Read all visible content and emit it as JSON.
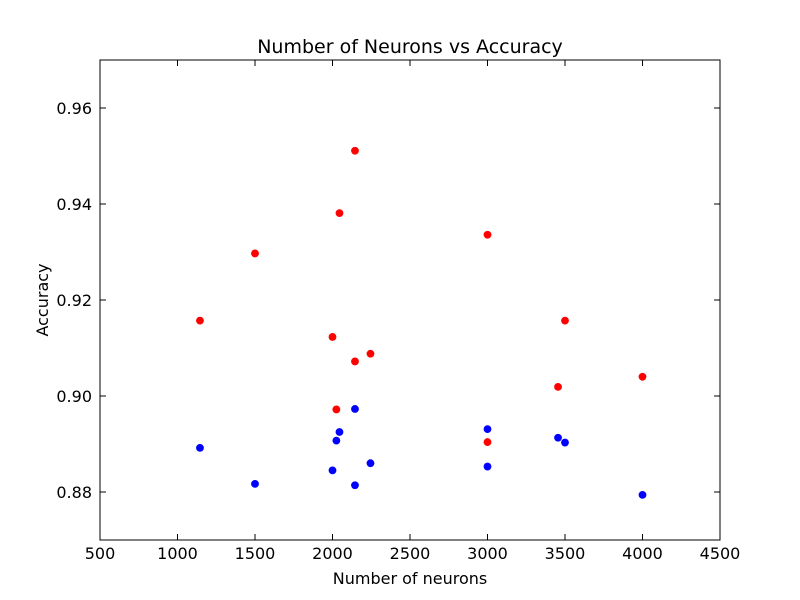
{
  "chart_data": {
    "type": "scatter",
    "title": "Number of Neurons vs Accuracy",
    "xlabel": "Number of neurons",
    "ylabel": "Accuracy",
    "xlim": [
      500,
      4500
    ],
    "ylim": [
      0.87,
      0.97
    ],
    "x_ticks": [
      "500",
      "1000",
      "1500",
      "2000",
      "2500",
      "3000",
      "3500",
      "4000",
      "4500"
    ],
    "x_tick_values": [
      500,
      1000,
      1500,
      2000,
      2500,
      3000,
      3500,
      4000,
      4500
    ],
    "y_ticks": [
      "0.88",
      "0.90",
      "0.92",
      "0.94",
      "0.96"
    ],
    "y_tick_values": [
      0.88,
      0.9,
      0.92,
      0.94,
      0.96
    ],
    "grid": false,
    "series": [
      {
        "color": "#ff0000",
        "points": [
          [
            1145,
            0.9157
          ],
          [
            1500,
            0.9297
          ],
          [
            2000,
            0.9123
          ],
          [
            2025,
            0.8972
          ],
          [
            2045,
            0.9381
          ],
          [
            2145,
            0.9511
          ],
          [
            2145,
            0.9072
          ],
          [
            2245,
            0.9088
          ],
          [
            3000,
            0.9336
          ],
          [
            3000,
            0.8904
          ],
          [
            3455,
            0.9019
          ],
          [
            3500,
            0.9157
          ],
          [
            4000,
            0.904
          ]
        ]
      },
      {
        "color": "#0000ff",
        "points": [
          [
            1145,
            0.8892
          ],
          [
            1500,
            0.8817
          ],
          [
            2000,
            0.8845
          ],
          [
            2025,
            0.8907
          ],
          [
            2045,
            0.8925
          ],
          [
            2145,
            0.8973
          ],
          [
            2145,
            0.8814
          ],
          [
            2245,
            0.886
          ],
          [
            3000,
            0.8931
          ],
          [
            3000,
            0.8853
          ],
          [
            3455,
            0.8913
          ],
          [
            3500,
            0.8903
          ],
          [
            4000,
            0.8794
          ]
        ]
      }
    ]
  }
}
